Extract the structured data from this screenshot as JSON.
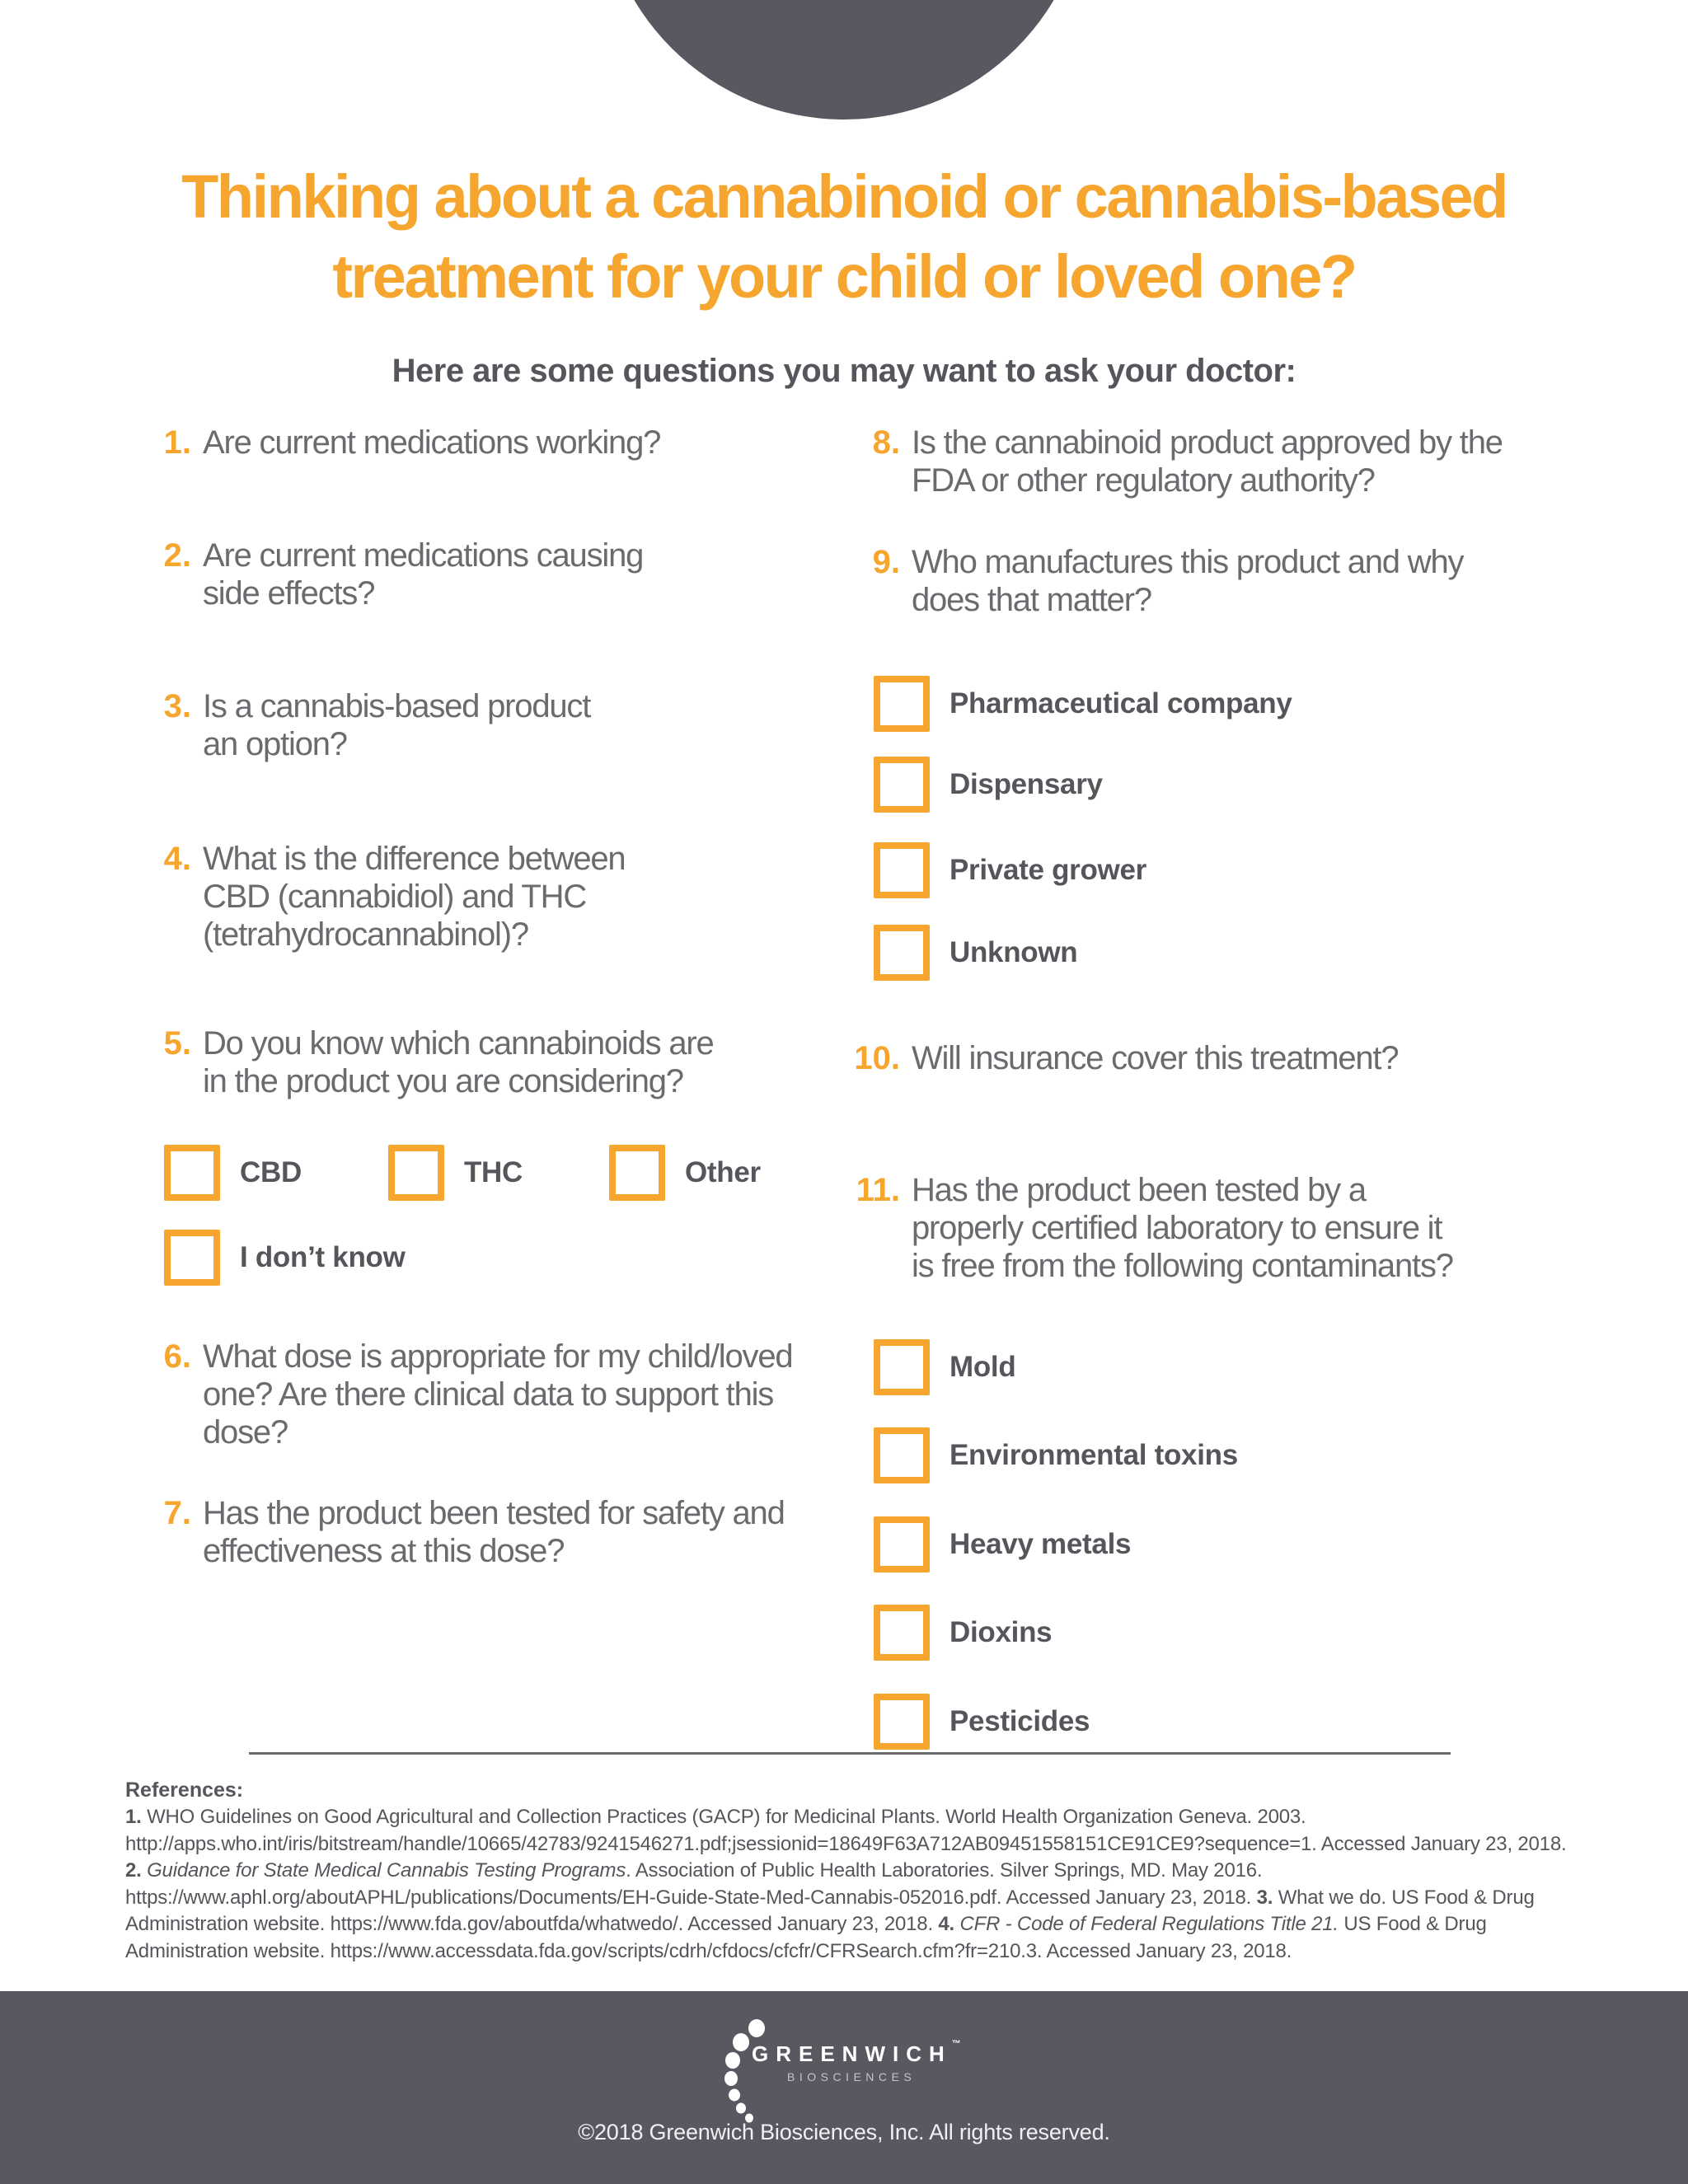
{
  "colors": {
    "accent_orange": "#F6A52E",
    "brand_dark_gray": "#595861",
    "question_text_gray": "#6A6B6F",
    "label_gray": "#55565B"
  },
  "header": {
    "title": "Thinking about a cannabinoid or cannabis-based\ntreatment for your child or loved one?",
    "subtitle": "Here are some questions you may want to ask your doctor:"
  },
  "columns": {
    "left": [
      {
        "type": "question",
        "number": "1.",
        "lines": [
          "Are current medications working?"
        ]
      },
      {
        "type": "question",
        "number": "2.",
        "lines": [
          "Are current medications causing",
          "side effects?"
        ]
      },
      {
        "type": "question",
        "number": "3.",
        "lines": [
          "Is a cannabis-based product",
          "an option?"
        ]
      },
      {
        "type": "question",
        "number": "4.",
        "lines": [
          "What is the difference between",
          "CBD (cannabidiol) and THC",
          "(tetrahydrocannabinol)?"
        ]
      },
      {
        "type": "question",
        "number": "5.",
        "lines": [
          "Do you know which cannabinoids are",
          "in the product you are considering?"
        ]
      },
      {
        "type": "checkbox-row",
        "items": [
          {
            "label": "CBD",
            "checked": false
          },
          {
            "label": "THC",
            "checked": false
          },
          {
            "label": "Other",
            "checked": false
          }
        ]
      },
      {
        "type": "checkbox-row",
        "items": [
          {
            "label": "I don’t know",
            "checked": false
          }
        ]
      },
      {
        "type": "question",
        "number": "6.",
        "lines": [
          "What dose is appropriate for my child/loved",
          "one? Are there clinical data to support this",
          "dose?"
        ]
      },
      {
        "type": "question",
        "number": "7.",
        "lines": [
          "Has the product been tested for safety and",
          "effectiveness at this dose?"
        ]
      }
    ],
    "right": [
      {
        "type": "question",
        "number": "8.",
        "lines": [
          "Is the cannabinoid product approved by the",
          "FDA or other regulatory authority?"
        ]
      },
      {
        "type": "question",
        "number": "9.",
        "lines": [
          "Who manufactures this product and why",
          "does that matter?"
        ]
      },
      {
        "type": "checkbox",
        "label": "Pharmaceutical company",
        "checked": false
      },
      {
        "type": "checkbox",
        "label": "Dispensary",
        "checked": false
      },
      {
        "type": "checkbox",
        "label": "Private grower",
        "checked": false
      },
      {
        "type": "checkbox",
        "label": "Unknown",
        "checked": false
      },
      {
        "type": "question",
        "number": "10.",
        "lines": [
          "Will insurance cover this treatment?"
        ]
      },
      {
        "type": "question",
        "number": "11.",
        "lines": [
          "Has the product been tested by a",
          "properly certified laboratory to ensure it",
          "is free from the following contaminants?"
        ]
      },
      {
        "type": "checkbox",
        "label": "Mold",
        "checked": false
      },
      {
        "type": "checkbox",
        "label": "Environmental toxins",
        "checked": false
      },
      {
        "type": "checkbox",
        "label": "Heavy metals",
        "checked": false
      },
      {
        "type": "checkbox",
        "label": "Dioxins",
        "checked": false
      },
      {
        "type": "checkbox",
        "label": "Pesticides",
        "checked": false
      }
    ]
  },
  "references": {
    "heading": "References:",
    "segments": [
      {
        "t": "1. ",
        "b": true
      },
      {
        "t": "WHO Guidelines on Good Agricultural and Collection Practices (GACP) for Medicinal Plants. World Health Organization Geneva. 2003. http://apps.who.int/iris/bitstream/handle/10665/42783/9241546271.pdf;jsessionid=18649F63A712AB09451558151CE91CE9?sequence=1. Accessed January 23, 2018. "
      },
      {
        "t": "2. ",
        "b": true
      },
      {
        "t": "Guidance for State Medical Cannabis Testing Programs",
        "i": true
      },
      {
        "t": ". Association of Public Health Laboratories. Silver Springs, MD. May 2016. https://www.aphl.org/aboutAPHL/publications/Documents/EH-Guide-State-Med-Cannabis-052016.pdf. Accessed January 23, 2018. "
      },
      {
        "t": "3. ",
        "b": true
      },
      {
        "t": "What we do. US Food & Drug Administration website. https://www.fda.gov/aboutfda/whatwedo/. Accessed January 23, 2018. "
      },
      {
        "t": "4. ",
        "b": true
      },
      {
        "t": "CFR - Code of Federal Regulations Title 21.",
        "i": true
      },
      {
        "t": " US Food & Drug Administration website. https://www.accessdata.fda.gov/scripts/cdrh/cfdocs/cfcfr/CFRSearch.cfm?fr=210.3. Accessed January 23, 2018."
      }
    ]
  },
  "footer": {
    "brand": "GREENWICH",
    "brand_tm": "™",
    "sub_brand": "BIOSCIENCES",
    "copyright": "©2018 Greenwich Biosciences, Inc. All rights reserved."
  }
}
